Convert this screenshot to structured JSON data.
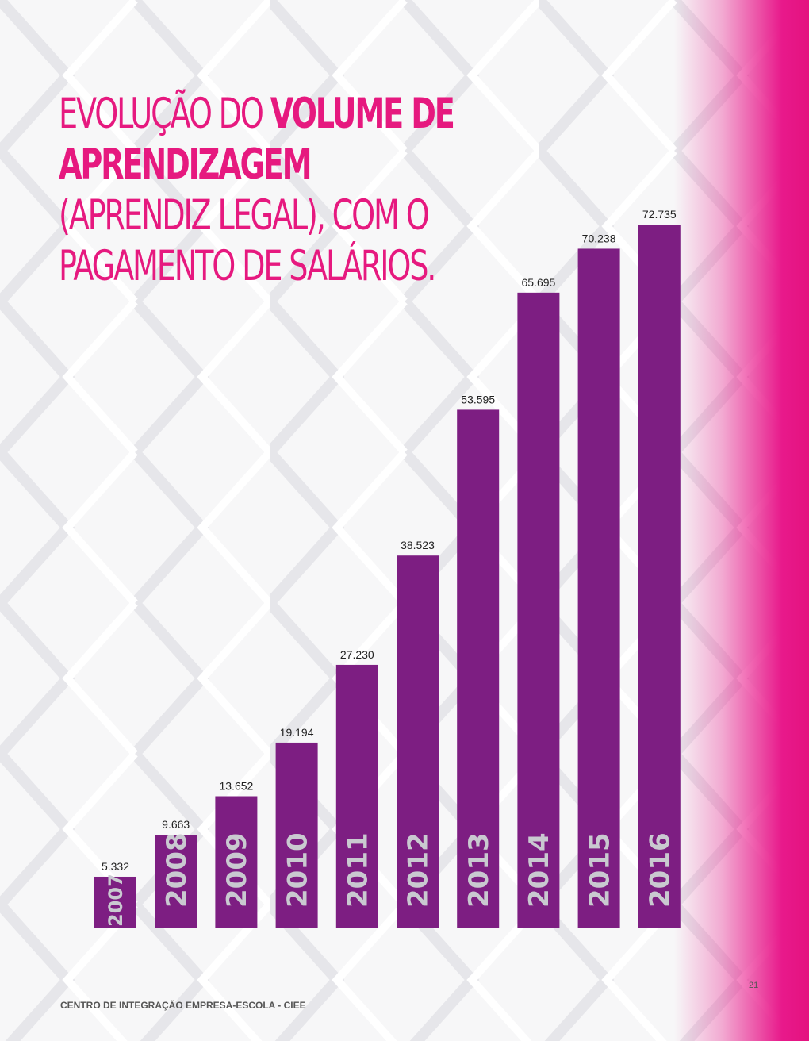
{
  "title": {
    "part1": "EVOLUÇÃO DO ",
    "part2_bold": "VOLUME DE APRENDIZAGEM",
    "part3": "(APRENDIZ LEGAL), COM O PAGAMENTO DE SALÁRIOS."
  },
  "chart_data": {
    "type": "bar",
    "categories": [
      "2007",
      "2008",
      "2009",
      "2010",
      "2011",
      "2012",
      "2013",
      "2014",
      "2015",
      "2016"
    ],
    "values": [
      5332,
      9663,
      13652,
      19194,
      27230,
      38523,
      53595,
      65695,
      70238,
      72735
    ],
    "value_labels": [
      "5.332",
      "9.663",
      "13.652",
      "19.194",
      "27.230",
      "38.523",
      "53.595",
      "65.695",
      "70.238",
      "72.735"
    ],
    "title": "EVOLUÇÃO DO VOLUME DE APRENDIZAGEM (APRENDIZ LEGAL), COM O PAGAMENTO DE SALÁRIOS.",
    "xlabel": "",
    "ylabel": "",
    "grid": false,
    "legend": "none",
    "bar_color": "#7d1e82",
    "year_label_color": "#c9c9d0"
  },
  "footer": {
    "organization": "CENTRO DE INTEGRAÇÃO EMPRESA-ESCOLA - CIEE",
    "page_number": "21"
  },
  "colors": {
    "accent": "#e6197f",
    "bar": "#7d1e82",
    "background": "#f7f7f8"
  }
}
